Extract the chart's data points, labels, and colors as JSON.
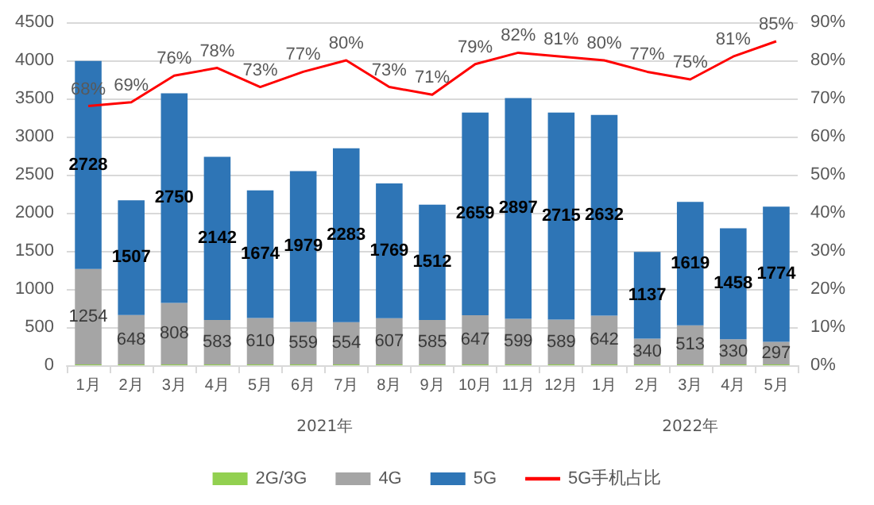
{
  "chart_data": {
    "type": "bar",
    "stacked": true,
    "categories": [
      "1月",
      "2月",
      "3月",
      "4月",
      "5月",
      "6月",
      "7月",
      "8月",
      "9月",
      "10月",
      "11月",
      "12月",
      "1月",
      "2月",
      "3月",
      "4月",
      "5月"
    ],
    "series": [
      {
        "name": "2G/3G",
        "color": "#92d050",
        "values": [
          10,
          10,
          10,
          10,
          10,
          10,
          10,
          10,
          10,
          10,
          10,
          10,
          10,
          10,
          10,
          10,
          10
        ]
      },
      {
        "name": "4G",
        "color": "#a5a5a5",
        "values": [
          1254,
          648,
          808,
          583,
          610,
          559,
          554,
          607,
          585,
          647,
          599,
          589,
          642,
          340,
          513,
          330,
          297
        ],
        "value_labels": [
          "1254",
          "648",
          "808",
          "583",
          "610",
          "559",
          "554",
          "607",
          "585",
          "647",
          "599",
          "589",
          "642",
          "340",
          "513",
          "330",
          "297"
        ]
      },
      {
        "name": "5G",
        "color": "#2e75b6",
        "values": [
          2728,
          1507,
          2750,
          2142,
          1674,
          1979,
          2283,
          1769,
          1512,
          2659,
          2897,
          2715,
          2632,
          1137,
          1619,
          1458,
          1774
        ],
        "value_labels": [
          "2728",
          "1507",
          "2750",
          "2142",
          "1674",
          "1979",
          "2283",
          "1769",
          "1512",
          "2659",
          "2897",
          "2715",
          "2632",
          "1137",
          "1619",
          "1458",
          "1774"
        ]
      },
      {
        "name": "5G手机占比",
        "type": "line",
        "axis": "y2",
        "color": "#ff0000",
        "values": [
          68,
          69,
          76,
          78,
          73,
          77,
          80,
          73,
          71,
          79,
          82,
          81,
          80,
          77,
          75,
          81,
          85
        ],
        "value_labels": [
          "68%",
          "69%",
          "76%",
          "78%",
          "73%",
          "77%",
          "80%",
          "73%",
          "71%",
          "79%",
          "82%",
          "81%",
          "80%",
          "77%",
          "75%",
          "81%",
          "85%"
        ]
      }
    ],
    "annotations": [
      "2021年",
      "2022年"
    ],
    "ylim": [
      0,
      4500
    ],
    "yticks": [
      0,
      500,
      1000,
      1500,
      2000,
      2500,
      3000,
      3500,
      4000,
      4500
    ],
    "y2lim": [
      0,
      90
    ],
    "y2ticks": [
      {
        "value": 0,
        "label": "0%"
      },
      {
        "value": 10,
        "label": "10%"
      },
      {
        "value": 20,
        "label": "20%"
      },
      {
        "value": 30,
        "label": "30%"
      },
      {
        "value": 40,
        "label": "40%"
      },
      {
        "value": 50,
        "label": "50%"
      },
      {
        "value": 60,
        "label": "60%"
      },
      {
        "value": 70,
        "label": "70%"
      },
      {
        "value": 80,
        "label": "80%"
      },
      {
        "value": 90,
        "label": "90%"
      }
    ],
    "grid": "y",
    "legend": "bottom",
    "marker": "none"
  }
}
